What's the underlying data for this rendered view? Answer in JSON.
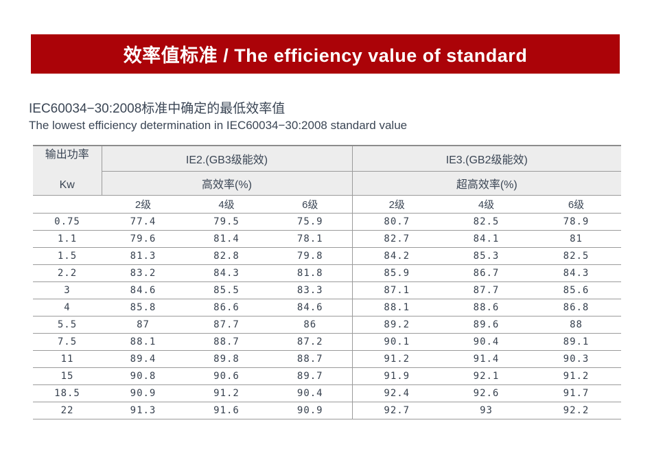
{
  "banner": {
    "title": "效率值标准 / The efficiency value of standard",
    "bg_color": "#ab0308",
    "text_color": "#ffffff"
  },
  "subtitle": {
    "line_zh": "IEC60034−30:2008标准中确定的最低效率值",
    "line_en": "The lowest efficiency determination in IEC60034−30:2008 standard value"
  },
  "table": {
    "power_label": "输出功率",
    "power_unit": "Kw",
    "group1_label": "IE2.(GB3级能效)",
    "group1_sub": "高效率(%)",
    "group2_label": "IE3.(GB2级能效)",
    "group2_sub": "超高效率(%)",
    "pole_headers": [
      "2级",
      "4级",
      "6级"
    ],
    "rows": [
      {
        "kw": "0.75",
        "ie2": [
          "77.4",
          "79.5",
          "75.9"
        ],
        "ie3": [
          "80.7",
          "82.5",
          "78.9"
        ]
      },
      {
        "kw": "1.1",
        "ie2": [
          "79.6",
          "81.4",
          "78.1"
        ],
        "ie3": [
          "82.7",
          "84.1",
          "81"
        ]
      },
      {
        "kw": "1.5",
        "ie2": [
          "81.3",
          "82.8",
          "79.8"
        ],
        "ie3": [
          "84.2",
          "85.3",
          "82.5"
        ]
      },
      {
        "kw": "2.2",
        "ie2": [
          "83.2",
          "84.3",
          "81.8"
        ],
        "ie3": [
          "85.9",
          "86.7",
          "84.3"
        ]
      },
      {
        "kw": "3",
        "ie2": [
          "84.6",
          "85.5",
          "83.3"
        ],
        "ie3": [
          "87.1",
          "87.7",
          "85.6"
        ]
      },
      {
        "kw": "4",
        "ie2": [
          "85.8",
          "86.6",
          "84.6"
        ],
        "ie3": [
          "88.1",
          "88.6",
          "86.8"
        ]
      },
      {
        "kw": "5.5",
        "ie2": [
          "87",
          "87.7",
          "86"
        ],
        "ie3": [
          "89.2",
          "89.6",
          "88"
        ]
      },
      {
        "kw": "7.5",
        "ie2": [
          "88.1",
          "88.7",
          "87.2"
        ],
        "ie3": [
          "90.1",
          "90.4",
          "89.1"
        ]
      },
      {
        "kw": "11",
        "ie2": [
          "89.4",
          "89.8",
          "88.7"
        ],
        "ie3": [
          "91.2",
          "91.4",
          "90.3"
        ]
      },
      {
        "kw": "15",
        "ie2": [
          "90.8",
          "90.6",
          "89.7"
        ],
        "ie3": [
          "91.9",
          "92.1",
          "91.2"
        ]
      },
      {
        "kw": "18.5",
        "ie2": [
          "90.9",
          "91.2",
          "90.4"
        ],
        "ie3": [
          "92.4",
          "92.6",
          "91.7"
        ]
      },
      {
        "kw": "22",
        "ie2": [
          "91.3",
          "91.6",
          "90.9"
        ],
        "ie3": [
          "92.7",
          "93",
          "92.2"
        ]
      }
    ]
  }
}
